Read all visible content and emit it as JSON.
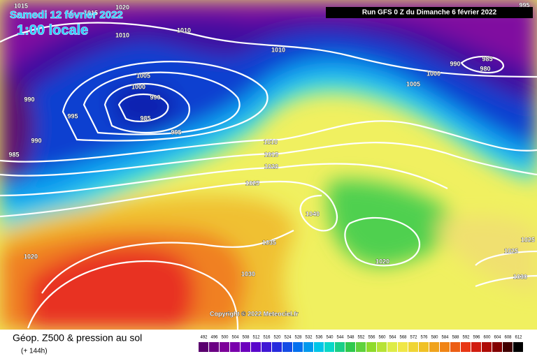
{
  "header": {
    "date": "Samedi 12 février 2022",
    "time": "1:00 locale",
    "run": "Run GFS 0 Z du Dimanche 6 février 2022"
  },
  "copyright": "Copyright © 2022 Meteociel.fr",
  "footer": {
    "title": "Géop. Z500 & pression au sol",
    "lead": "(+ 144h)"
  },
  "colorbar": {
    "ticks": [
      492,
      496,
      500,
      504,
      508,
      512,
      516,
      520,
      524,
      528,
      532,
      536,
      540,
      544,
      548,
      552,
      556,
      560,
      564,
      568,
      572,
      576,
      580,
      584,
      588,
      592,
      596,
      600,
      604,
      608,
      612
    ]
  },
  "isobar_labels": [
    "1015",
    "1015",
    "1020",
    "1010",
    "1010",
    "1010",
    "1005",
    "1000",
    "990",
    "985",
    "995",
    "995",
    "990",
    "990",
    "985",
    "1010",
    "1015",
    "1020",
    "1025",
    "1040",
    "1035",
    "1030",
    "1020",
    "1020",
    "1025",
    "1030",
    "1025",
    "1005",
    "1000",
    "990",
    "985",
    "980",
    "995"
  ]
}
